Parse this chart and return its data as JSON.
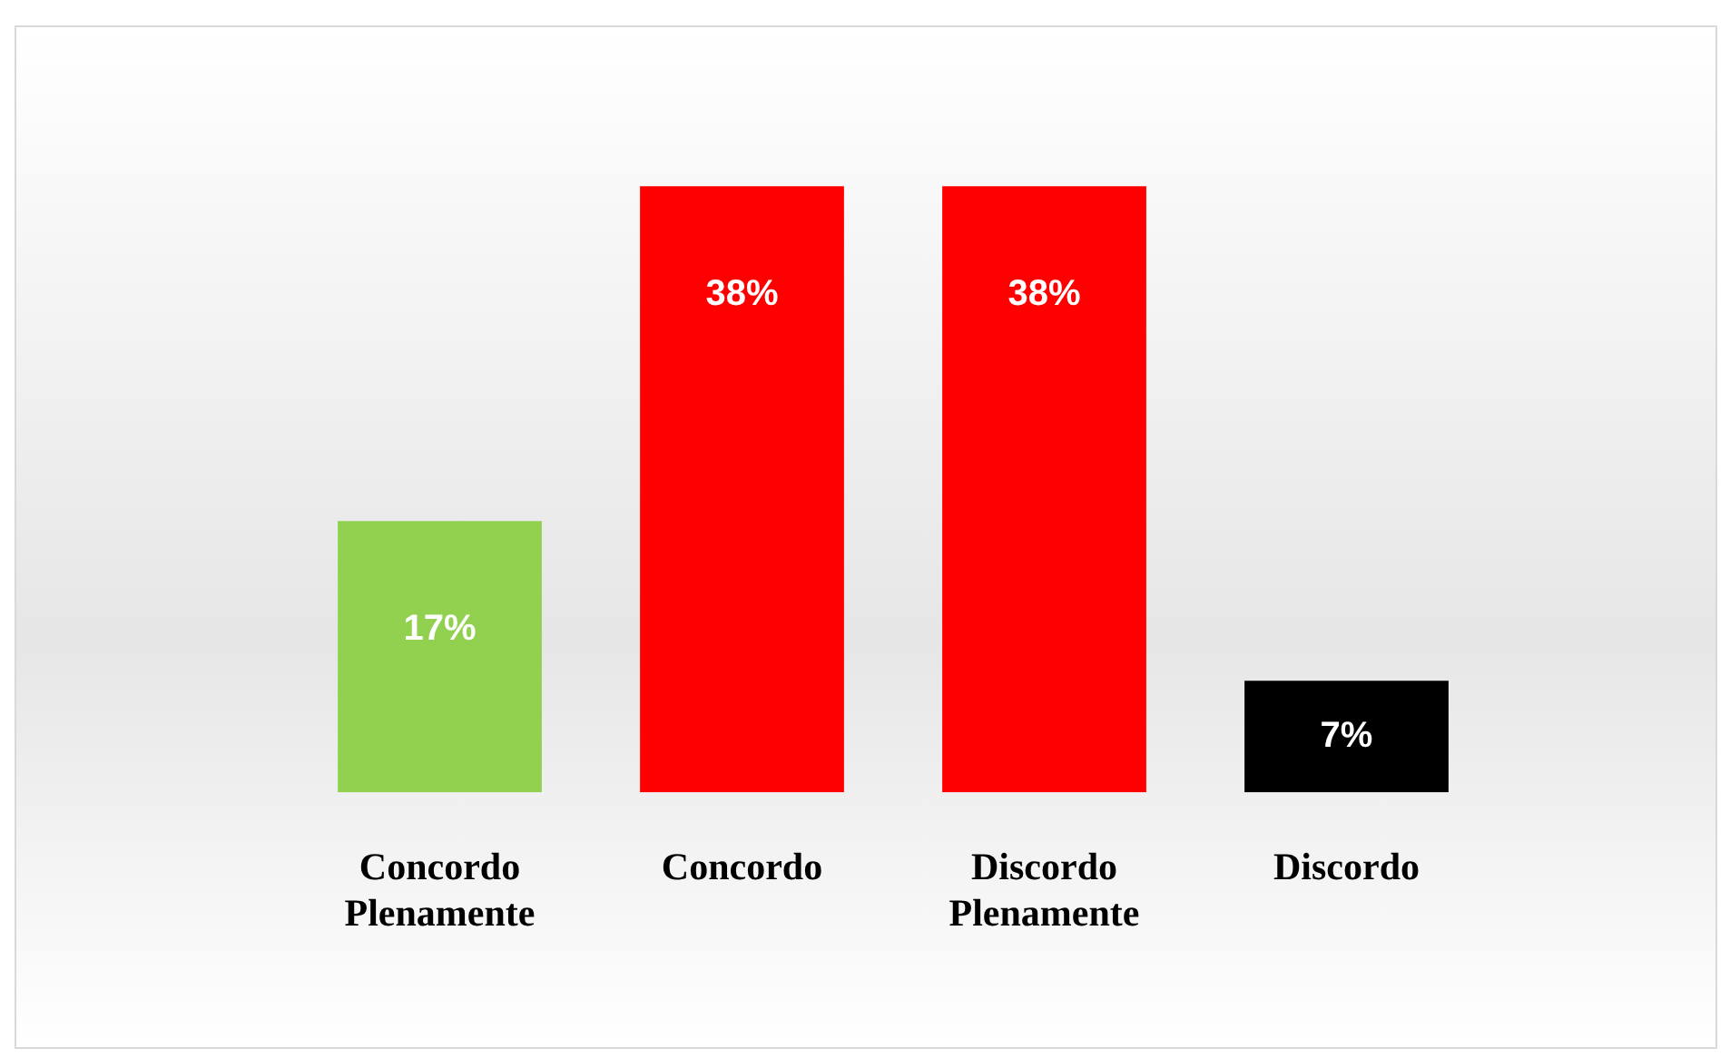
{
  "chart_data": {
    "type": "bar",
    "categories": [
      "Concordo Plenamente",
      "Concordo",
      "Discordo Plenamente",
      "Discordo"
    ],
    "values": [
      17,
      38,
      38,
      7
    ],
    "colors": [
      "#92d050",
      "#ff0000",
      "#ff0000",
      "#000000"
    ],
    "value_labels": [
      "17%",
      "38%",
      "38%",
      "7%"
    ],
    "grid": false,
    "legend": false,
    "tick_labels": "x"
  }
}
